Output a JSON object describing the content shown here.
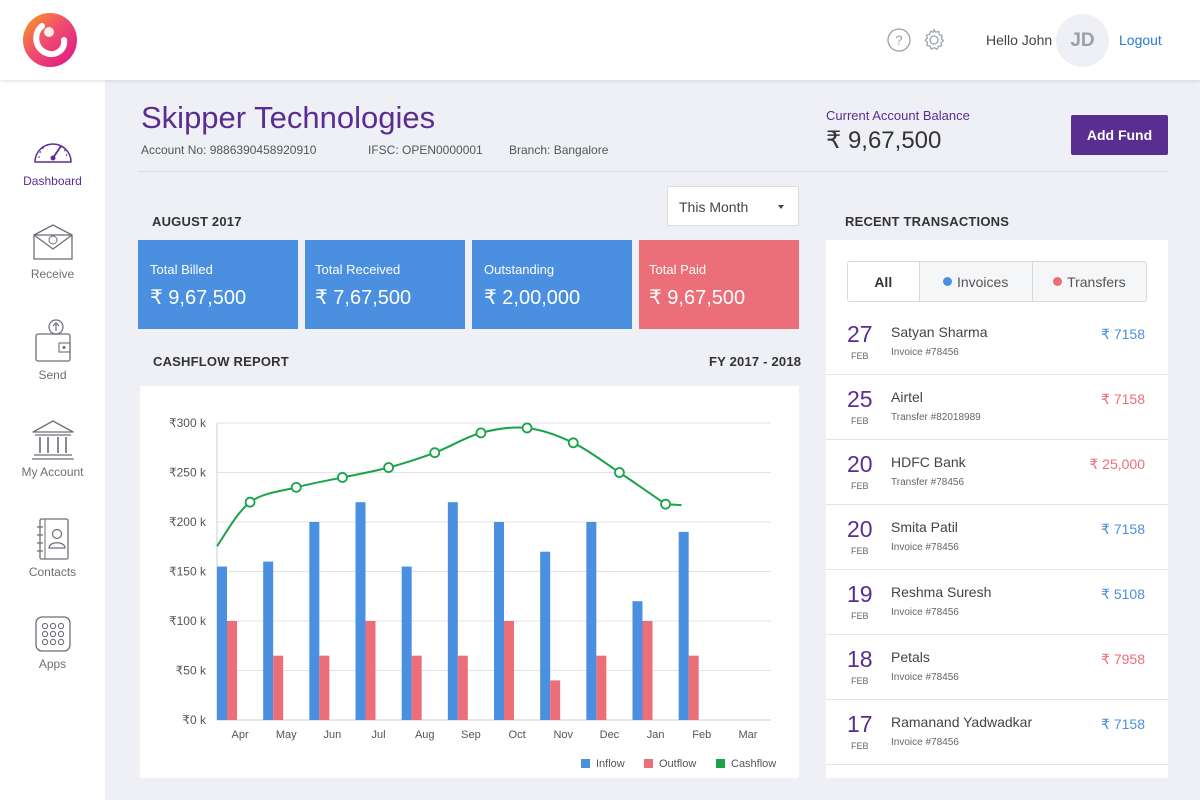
{
  "header": {
    "greeting": "Hello John",
    "avatar_initials": "JD",
    "logout_label": "Logout",
    "icons": [
      "help-icon",
      "gear-icon"
    ]
  },
  "sidebar": {
    "items": [
      {
        "label": "Dashboard",
        "icon": "speedometer-icon",
        "active": true
      },
      {
        "label": "Receive",
        "icon": "envelope-icon",
        "active": false
      },
      {
        "label": "Send",
        "icon": "wallet-send-icon",
        "active": false
      },
      {
        "label": "My Account",
        "icon": "bank-icon",
        "active": false
      },
      {
        "label": "Contacts",
        "icon": "contacts-book-icon",
        "active": false
      },
      {
        "label": "Apps",
        "icon": "apps-grid-icon",
        "active": false
      }
    ]
  },
  "company": {
    "name": "Skipper Technologies",
    "account_no": "Account No: 9886390458920910",
    "ifsc": "IFSC: OPEN0000001",
    "branch": "Branch: Bangalore"
  },
  "balance": {
    "label": "Current Account Balance",
    "value": "₹ 9,67,500",
    "add_fund_label": "Add Fund"
  },
  "period": {
    "title": "AUGUST 2017",
    "select_value": "This Month"
  },
  "cards": [
    {
      "label": "Total Billed",
      "value": "₹ 9,67,500",
      "color": "#4a8fe0"
    },
    {
      "label": "Total Received",
      "value": "₹ 7,67,500",
      "color": "#4a8fe0"
    },
    {
      "label": "Outstanding",
      "value": "₹ 2,00,000",
      "color": "#4a8fe0"
    },
    {
      "label": "Total Paid",
      "value": "₹ 9,67,500",
      "color": "#ec6e78"
    }
  ],
  "cashflow": {
    "title": "CASHFLOW REPORT",
    "fy": "FY 2017 - 2018"
  },
  "chart_data": {
    "type": "bar",
    "categories": [
      "Apr",
      "May",
      "Jun",
      "Jul",
      "Aug",
      "Sep",
      "Oct",
      "Nov",
      "Dec",
      "Jan",
      "Feb",
      "Mar"
    ],
    "y_tick_labels": [
      "₹0 k",
      "₹50 k",
      "₹100 k",
      "₹150 k",
      "₹200 k",
      "₹250 k",
      "₹300 k"
    ],
    "ylim": [
      0,
      300
    ],
    "grid": true,
    "legend_position": "bottom-right",
    "series": [
      {
        "name": "Inflow",
        "type": "bar",
        "color": "#4a8fe0",
        "values": [
          155,
          160,
          200,
          220,
          155,
          220,
          200,
          170,
          200,
          120,
          190,
          null
        ]
      },
      {
        "name": "Outflow",
        "type": "bar",
        "color": "#ec6e78",
        "values": [
          100,
          65,
          65,
          100,
          65,
          65,
          100,
          40,
          65,
          100,
          65,
          null
        ]
      },
      {
        "name": "Cashflow",
        "type": "line",
        "color": "#1aa34a",
        "values": [
          220,
          235,
          245,
          255,
          270,
          290,
          295,
          280,
          250,
          218,
          null,
          null
        ]
      }
    ]
  },
  "transactions": {
    "title": "RECENT TRANSACTIONS",
    "tabs": [
      {
        "label": "All",
        "active": true,
        "dot": null
      },
      {
        "label": "Invoices",
        "active": false,
        "dot": "#4a8fe0"
      },
      {
        "label": "Transfers",
        "active": false,
        "dot": "#ec6e78"
      }
    ],
    "items": [
      {
        "day": "27",
        "month": "FEB",
        "name": "Satyan Sharma",
        "ref": "Invoice #78456",
        "amount": "₹ 7158",
        "color": "#4a8fe0"
      },
      {
        "day": "25",
        "month": "FEB",
        "name": "Airtel",
        "ref": "Transfer #82018989",
        "amount": "₹ 7158",
        "color": "#ec6e78"
      },
      {
        "day": "20",
        "month": "FEB",
        "name": "HDFC Bank",
        "ref": "Transfer #78456",
        "amount": "₹ 25,000",
        "color": "#ec6e78"
      },
      {
        "day": "20",
        "month": "FEB",
        "name": "Smita Patil",
        "ref": "Invoice #78456",
        "amount": "₹ 7158",
        "color": "#4a8fe0"
      },
      {
        "day": "19",
        "month": "FEB",
        "name": "Reshma Suresh",
        "ref": "Invoice #78456",
        "amount": "₹ 5108",
        "color": "#4a8fe0"
      },
      {
        "day": "18",
        "month": "FEB",
        "name": "Petals",
        "ref": "Invoice #78456",
        "amount": "₹ 7958",
        "color": "#ec6e78"
      },
      {
        "day": "17",
        "month": "FEB",
        "name": "Ramanand Yadwadkar",
        "ref": "Invoice #78456",
        "amount": "₹ 7158",
        "color": "#4a8fe0"
      }
    ]
  },
  "colors": {
    "brand": "#5a2d91",
    "inflow": "#4a8fe0",
    "outflow": "#ec6e78",
    "cashflow": "#1aa34a"
  }
}
